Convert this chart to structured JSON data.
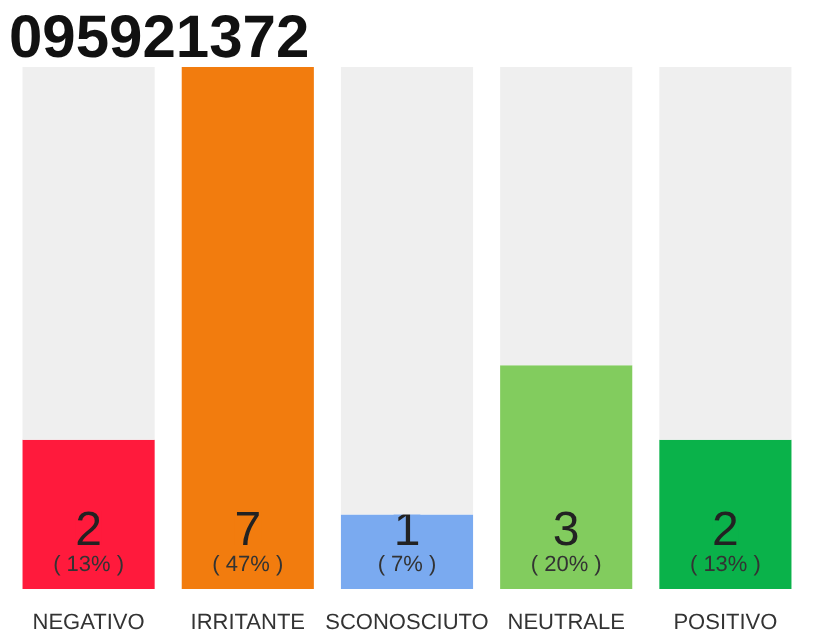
{
  "chart_data": {
    "type": "bar",
    "title": "095921372",
    "categories": [
      "NEGATIVO",
      "IRRITANTE",
      "SCONOSCIUTO",
      "NEUTRALE",
      "POSITIVO"
    ],
    "stacked": true,
    "ylim": [
      0,
      7
    ],
    "tick_labels": "x",
    "grid": false,
    "series": [
      {
        "colors": [
          "#ff1a3c",
          "#f27c0e",
          "#7aaaf0",
          "#82cc5e",
          "#0ab24a"
        ],
        "values": [
          2,
          7,
          1,
          3,
          2
        ],
        "value_labels": [
          "2\n( 13% )",
          "7\n( 47% )",
          "1\n( 7% )",
          "3\n( 20% )",
          "2\n( 13% )"
        ]
      },
      {
        "color": "#efefef",
        "values": [
          5,
          0,
          6,
          4,
          5
        ]
      }
    ]
  }
}
